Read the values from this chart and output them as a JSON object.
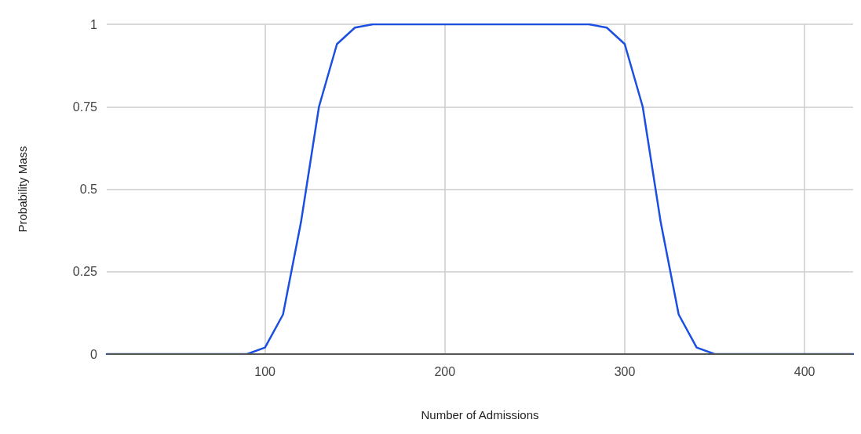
{
  "chart_data": {
    "type": "line",
    "xlabel": "Number of Admissions",
    "ylabel": "Probability Mass",
    "x": [
      12,
      90,
      100,
      110,
      120,
      130,
      140,
      150,
      160,
      280,
      290,
      300,
      310,
      320,
      330,
      340,
      350,
      427
    ],
    "series": [
      {
        "color": "#1a4fe0",
        "values": [
          0,
          0,
          0.02,
          0.12,
          0.4,
          0.75,
          0.94,
          0.99,
          1,
          1,
          0.99,
          0.94,
          0.75,
          0.4,
          0.12,
          0.02,
          0,
          0
        ]
      }
    ],
    "xlim": [
      12,
      427
    ],
    "xticks": [
      100,
      200,
      300,
      400
    ],
    "ylim": [
      0,
      1
    ],
    "yticks": [
      0,
      0.25,
      0.5,
      0.75,
      1
    ],
    "grid": true,
    "marker": "none",
    "line_style": "solid"
  }
}
